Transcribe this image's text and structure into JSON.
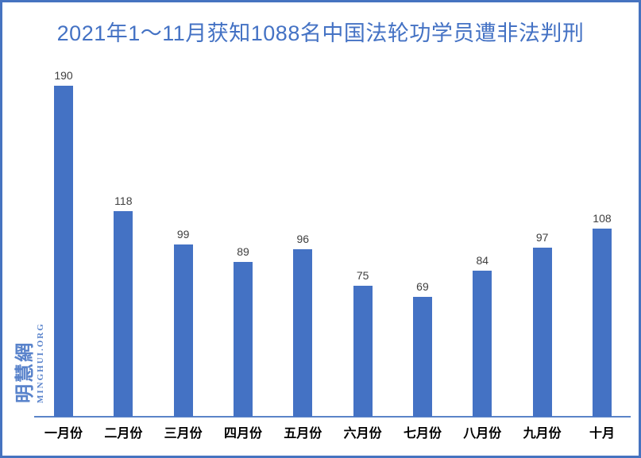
{
  "chart_data": {
    "type": "bar",
    "title": "2021年1～11月获知1088名中国法轮功学员遭非法判刑",
    "categories": [
      "一月份",
      "二月份",
      "三月份",
      "四月份",
      "五月份",
      "六月份",
      "七月份",
      "八月份",
      "九月份",
      "十月"
    ],
    "values": [
      190,
      118,
      99,
      89,
      96,
      75,
      69,
      84,
      97,
      108
    ],
    "xlabel": "",
    "ylabel": "",
    "ylim": [
      0,
      200
    ],
    "grid": false,
    "legend": false,
    "value_labels_shown": true,
    "bar_color": "#4472c4",
    "value_label_color": "#3f3f3f",
    "axis_line_color": "#5b84c8",
    "title_color": "#4472c4"
  },
  "watermark": {
    "cjk": "明慧網",
    "latin": "MINGHUI.ORG"
  },
  "colors": {
    "frame_border": "#4673c0",
    "background": "#ffffff"
  }
}
